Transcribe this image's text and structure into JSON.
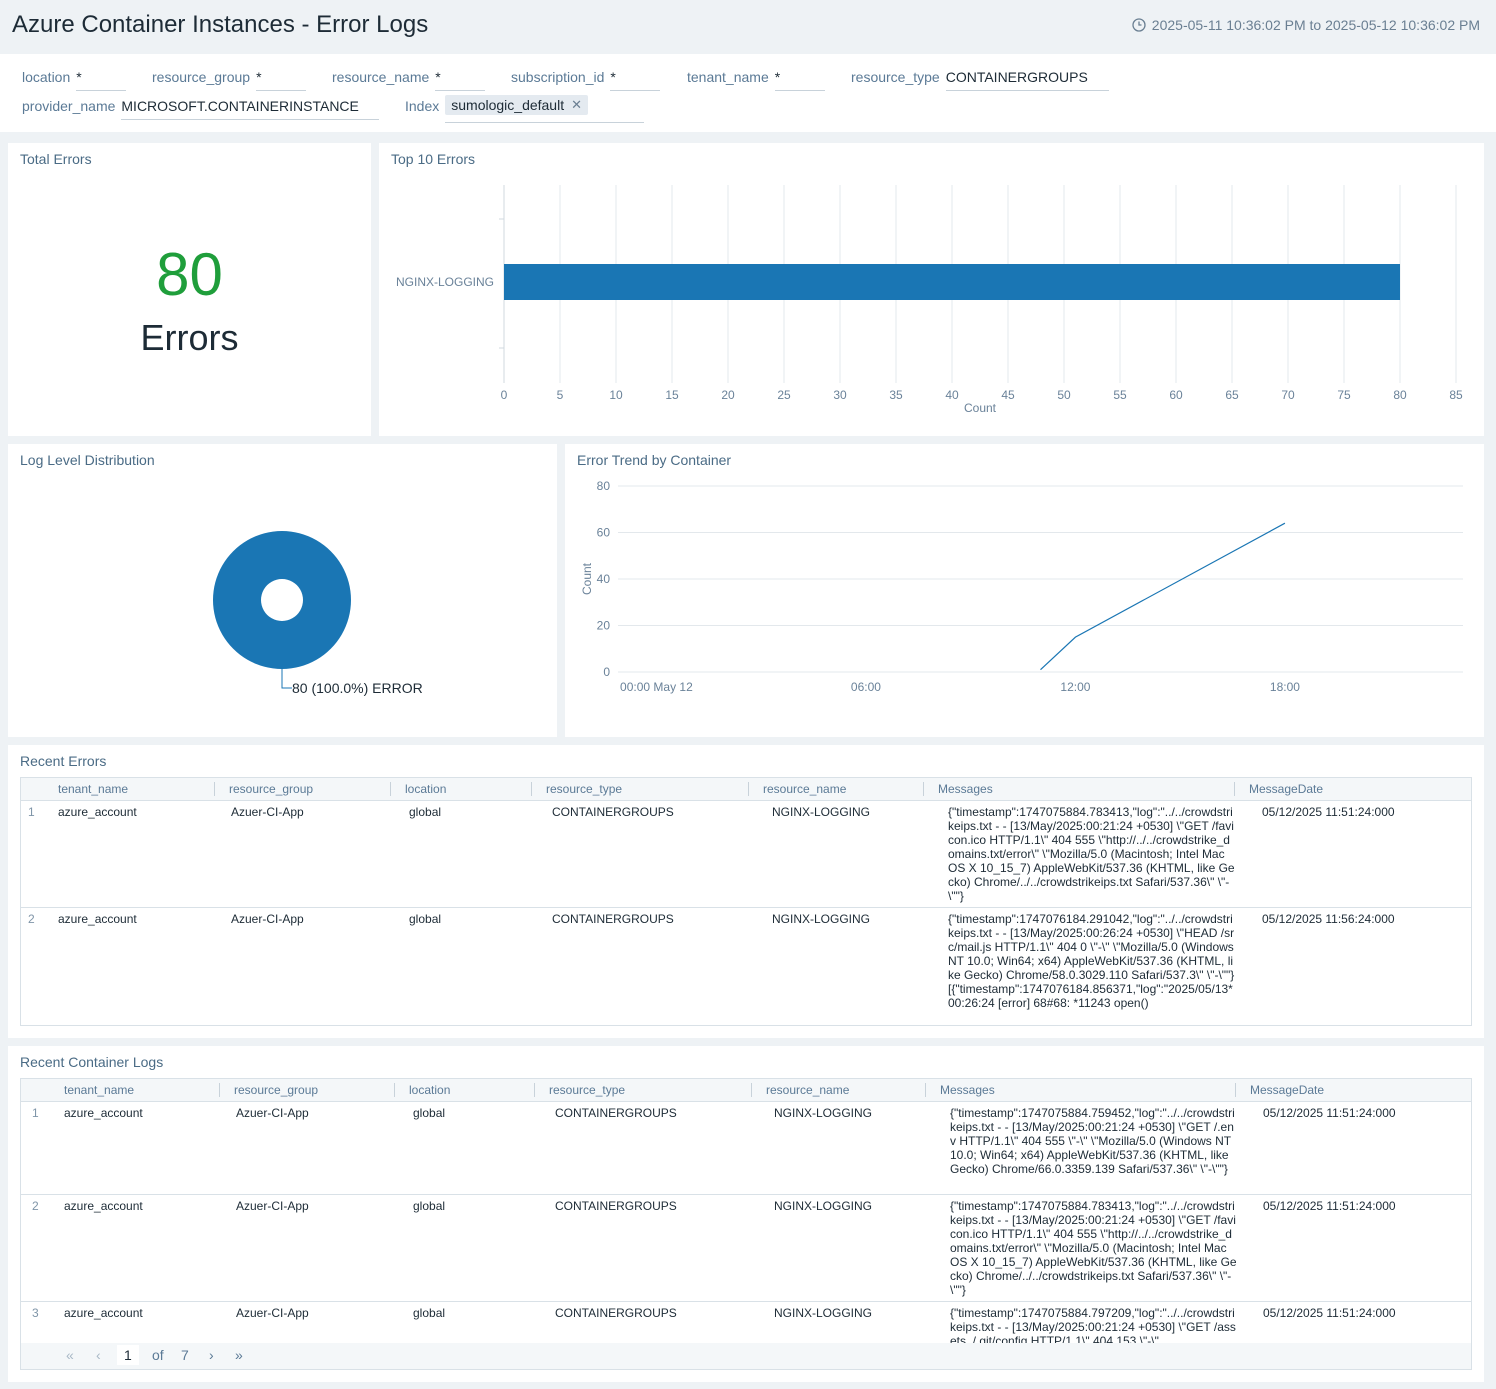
{
  "header": {
    "title": "Azure Container Instances - Error Logs",
    "time_range": "2025-05-11 10:36:02 PM to 2025-05-12 10:36:02 PM"
  },
  "filters": [
    {
      "label": "location",
      "value": "*"
    },
    {
      "label": "resource_group",
      "value": "*"
    },
    {
      "label": "resource_name",
      "value": "*"
    },
    {
      "label": "subscription_id",
      "value": "*"
    },
    {
      "label": "tenant_name",
      "value": "*"
    },
    {
      "label": "resource_type",
      "value": "CONTAINERGROUPS"
    },
    {
      "label": "provider_name",
      "value": "MICROSOFT.CONTAINERINSTANCE"
    },
    {
      "label": "Index",
      "value": "sumologic_default"
    }
  ],
  "total_errors": {
    "title": "Total Errors",
    "value": "80",
    "unit": "Errors",
    "value_color": "#1f9e3b"
  },
  "top_errors": {
    "title": "Top 10 Errors",
    "chart_data": {
      "type": "bar",
      "orientation": "horizontal",
      "categories": [
        "NGINX-LOGGING"
      ],
      "values": [
        80
      ],
      "xlabel": "Count",
      "xlim": [
        0,
        85
      ],
      "xticks": [
        "0",
        "5",
        "10",
        "15",
        "20",
        "25",
        "30",
        "35",
        "40",
        "45",
        "50",
        "55",
        "60",
        "65",
        "70",
        "75",
        "80",
        "85"
      ],
      "grid": true,
      "color": "#1a76b4"
    }
  },
  "log_level": {
    "title": "Log Level Distribution",
    "chart_data": {
      "type": "pie",
      "donut": true,
      "labels": [
        "ERROR"
      ],
      "values": [
        80
      ],
      "slice_label": "80 (100.0%) ERROR",
      "color": "#1a76b4"
    }
  },
  "error_trend": {
    "title": "Error Trend by Container",
    "chart_data": {
      "type": "line",
      "x_ticks": [
        "00:00 May 12",
        "06:00",
        "12:00",
        "18:00"
      ],
      "x_hours": [
        11,
        12,
        18
      ],
      "xlim_hours": [
        -1.1,
        23.1
      ],
      "series": [
        {
          "values": [
            1,
            15,
            64
          ]
        }
      ],
      "ylabel": "Count",
      "ylim": [
        0,
        80
      ],
      "y_ticks": [
        "0",
        "20",
        "40",
        "60",
        "80"
      ],
      "grid": true,
      "color": "#1a76b4"
    }
  },
  "recent_errors": {
    "title": "Recent Errors",
    "columns": [
      "tenant_name",
      "resource_group",
      "location",
      "resource_type",
      "resource_name",
      "Messages",
      "MessageDate"
    ],
    "rows": [
      {
        "num": "1",
        "tenant_name": "azure_account",
        "resource_group": "Azuer-CI-App",
        "location": "global",
        "resource_type": "CONTAINERGROUPS",
        "resource_name": "NGINX-LOGGING",
        "message": "{\"timestamp\":1747075884.783413,\"log\":\"../../crowdstrikeips.txt - - [13/May/2025:00:21:24 +0530] \\\"GET /favicon.ico HTTP/1.1\\\" 404 555 \\\"http://../../crowdstrike_domains.txt/error\\\" \\\"Mozilla/5.0 (Macintosh; Intel Mac OS X 10_15_7) AppleWebKit/537.36 (KHTML, like Gecko) Chrome/../../crowdstrikeips.txt Safari/537.36\\\" \\\"-\\\"\"}",
        "date": "05/12/2025 11:51:24:000"
      },
      {
        "num": "2",
        "tenant_name": "azure_account",
        "resource_group": "Azuer-CI-App",
        "location": "global",
        "resource_type": "CONTAINERGROUPS",
        "resource_name": "NGINX-LOGGING",
        "message": "{\"timestamp\":1747076184.291042,\"log\":\"../../crowdstrikeips.txt - - [13/May/2025:00:26:24 +0530] \\\"HEAD /src/mail.js HTTP/1.1\\\" 404 0 \\\"-\\\" \\\"Mozilla/5.0 (Windows NT 10.0; Win64; x64) AppleWebKit/537.36 (KHTML, like Gecko) Chrome/58.0.3029.110 Safari/537.3\\\" \\\"-\\\"\"} [{\"timestamp\":1747076184.856371,\"log\":\"2025/05/13* 00:26:24 [error] 68#68: *11243 open()",
        "date": "05/12/2025 11:56:24:000"
      }
    ]
  },
  "recent_logs": {
    "title": "Recent Container Logs",
    "columns": [
      "tenant_name",
      "resource_group",
      "location",
      "resource_type",
      "resource_name",
      "Messages",
      "MessageDate"
    ],
    "rows": [
      {
        "num": "1",
        "tenant_name": "azure_account",
        "resource_group": "Azuer-CI-App",
        "location": "global",
        "resource_type": "CONTAINERGROUPS",
        "resource_name": "NGINX-LOGGING",
        "message": "{\"timestamp\":1747075884.759452,\"log\":\"../../crowdstrikeips.txt - - [13/May/2025:00:21:24 +0530] \\\"GET /.env HTTP/1.1\\\" 404 555 \\\"-\\\" \\\"Mozilla/5.0 (Windows NT 10.0; Win64; x64) AppleWebKit/537.36 (KHTML, like Gecko) Chrome/66.0.3359.139 Safari/537.36\\\" \\\"-\\\"\"}",
        "date": "05/12/2025 11:51:24:000"
      },
      {
        "num": "2",
        "tenant_name": "azure_account",
        "resource_group": "Azuer-CI-App",
        "location": "global",
        "resource_type": "CONTAINERGROUPS",
        "resource_name": "NGINX-LOGGING",
        "message": "{\"timestamp\":1747075884.783413,\"log\":\"../../crowdstrikeips.txt - - [13/May/2025:00:21:24 +0530] \\\"GET /favicon.ico HTTP/1.1\\\" 404 555 \\\"http://../../crowdstrike_domains.txt/error\\\" \\\"Mozilla/5.0 (Macintosh; Intel Mac OS X 10_15_7) AppleWebKit/537.36 (KHTML, like Gecko) Chrome/../../crowdstrikeips.txt Safari/537.36\\\" \\\"-\\\"\"}",
        "date": "05/12/2025 11:51:24:000"
      },
      {
        "num": "3",
        "tenant_name": "azure_account",
        "resource_group": "Azuer-CI-App",
        "location": "global",
        "resource_type": "CONTAINERGROUPS",
        "resource_name": "NGINX-LOGGING",
        "message": "{\"timestamp\":1747075884.797209,\"log\":\"../../crowdstrikeips.txt - - [13/May/2025:00:21:24 +0530] \\\"GET /assets../.git/config HTTP/1.1\\\" 404 153 \\\"-\\\"",
        "date": "05/12/2025 11:51:24:000"
      }
    ],
    "pager": {
      "page": "1",
      "of_label": "of",
      "total": "7"
    }
  }
}
